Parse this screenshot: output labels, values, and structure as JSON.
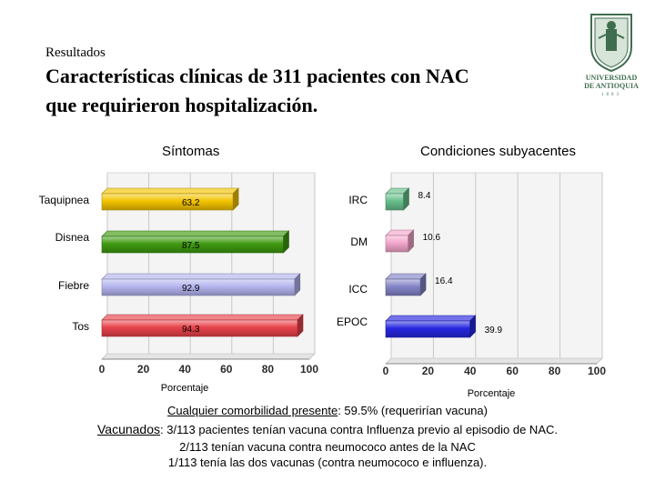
{
  "header": {
    "kicker": "Resultados",
    "title_line1": "Características clínicas de 311 pacientes con NAC",
    "title_line2": "que requirieron hospitalización.",
    "logo_name": "UNIVERSIDAD DE ANTIOQUIA",
    "logo_line1": "UNIVERSIDAD",
    "logo_line2": "DE ANTIOQUIA",
    "logo_year": "1803"
  },
  "chart_data": [
    {
      "type": "bar",
      "orientation": "horizontal",
      "title": "Síntomas",
      "xlabel": "Porcentaje",
      "xlim": [
        0,
        100
      ],
      "ticks": [
        0,
        20,
        40,
        60,
        80,
        100
      ],
      "categories": [
        "Taquipnea",
        "Disnea",
        "Fiebre",
        "Tos"
      ],
      "values": [
        63.2,
        87.5,
        92.9,
        94.3
      ],
      "colors": [
        "#f3c400",
        "#3f9a10",
        "#b4b4ee",
        "#e8424a"
      ],
      "grid": true
    },
    {
      "type": "bar",
      "orientation": "horizontal",
      "title": "Condiciones subyacentes",
      "xlabel": "Porcentaje",
      "xlim": [
        0,
        100
      ],
      "ticks": [
        0,
        20,
        40,
        60,
        80,
        100
      ],
      "categories": [
        "IRC",
        "DM",
        "ICC",
        "EPOC"
      ],
      "values": [
        8.4,
        10.6,
        16.4,
        39.9
      ],
      "colors": [
        "#66c08a",
        "#f4a6cc",
        "#8484c8",
        "#2626e0"
      ],
      "grid": true
    }
  ],
  "footer": {
    "comorbidity_label": "Cualquier comorbilidad presente",
    "comorbidity_value": ": 59.5% (requerirían vacuna)",
    "vaccinated_label": "Vacunados",
    "vaccinated_line1": ": 3/113 pacientes tenían vacuna contra Influenza previo al episodio de NAC.",
    "vaccinated_line2": "2/113 tenían vacuna contra neumococo antes de la NAC",
    "vaccinated_line3": "1/113 tenía las dos vacunas (contra neumococo e influenza)."
  }
}
